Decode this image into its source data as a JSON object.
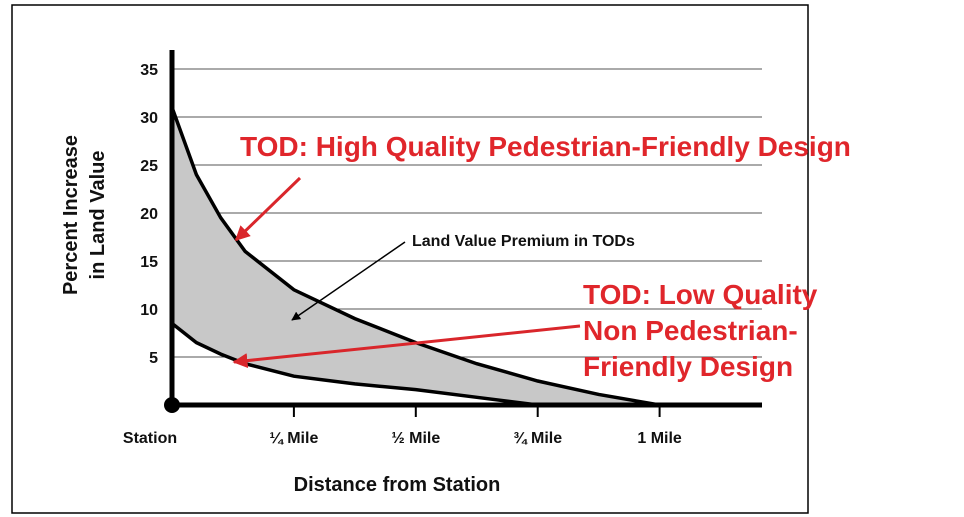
{
  "chart_data": {
    "type": "area_between",
    "xlabel": "Distance from Station",
    "ylabel": [
      "Percent Increase",
      "in Land Value"
    ],
    "series": [
      {
        "name": "TOD: High Quality Pedestrian-Friendly Design",
        "color": "#000000",
        "x": [
          0,
          0.05,
          0.1,
          0.15,
          0.25,
          0.375,
          0.5,
          0.625,
          0.75,
          0.875,
          1
        ],
        "values": [
          31,
          24,
          19.5,
          16,
          12,
          9,
          6.5,
          4.3,
          2.5,
          1.1,
          0
        ]
      },
      {
        "name": "TOD: Low Quality Non Pedestrian-Friendly Design",
        "color": "#000000",
        "x": [
          0,
          0.05,
          0.1,
          0.15,
          0.25,
          0.375,
          0.5,
          0.625,
          0.75
        ],
        "values": [
          8.5,
          6.5,
          5.3,
          4.3,
          3,
          2.2,
          1.6,
          0.8,
          0
        ]
      }
    ],
    "fill_color": "#c8c8c8",
    "annotations": {
      "high": "TOD: High Quality Pedestrian-Friendly Design",
      "premium": "Land Value Premium in TODs",
      "low": [
        "TOD: Low Quality",
        "Non Pedestrian-",
        "Friendly Design"
      ]
    },
    "xlim": [
      0,
      1.21
    ],
    "ylim": [
      0,
      35
    ],
    "xticks": [
      {
        "value": 0,
        "label": "Station"
      },
      {
        "value": 0.25,
        "label": "¼ Mile"
      },
      {
        "value": 0.5,
        "label": "½ Mile"
      },
      {
        "value": 0.75,
        "label": "¾ Mile"
      },
      {
        "value": 1,
        "label": "1 Mile"
      }
    ],
    "yticks": [
      5,
      10,
      15,
      20,
      25,
      30,
      35
    ],
    "grid": true
  }
}
